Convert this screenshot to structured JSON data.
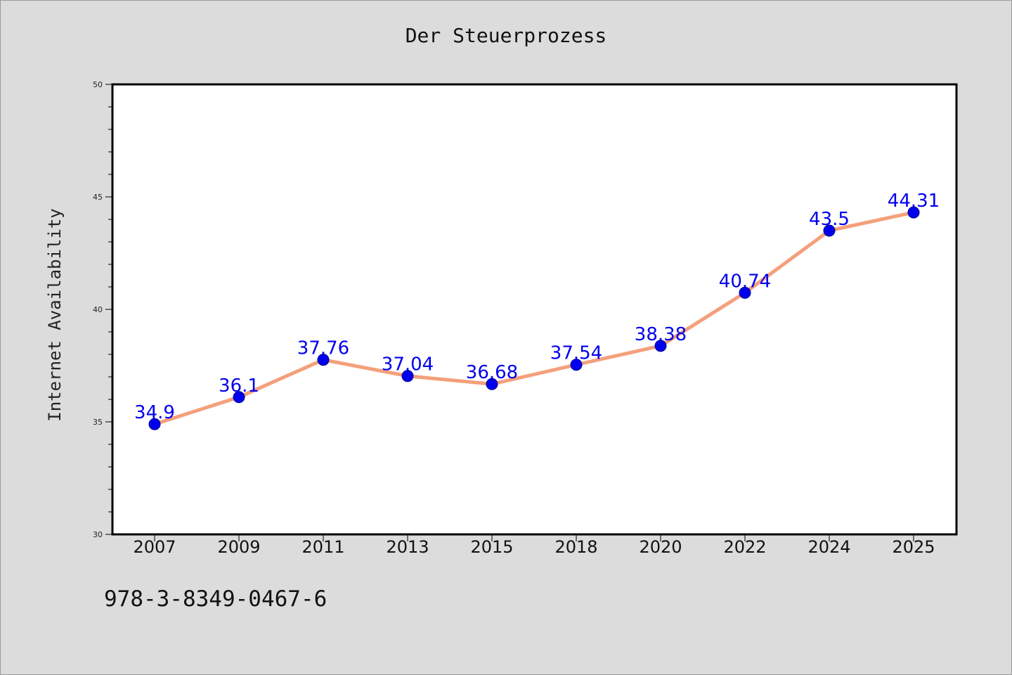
{
  "chart_data": {
    "type": "line",
    "title": "Der Steuerprozess",
    "xlabel": "",
    "ylabel": "Internet Availability",
    "categories": [
      "2007",
      "2009",
      "2011",
      "2013",
      "2015",
      "2018",
      "2020",
      "2022",
      "2024",
      "2025"
    ],
    "series": [
      {
        "values": [
          34.9,
          36.1,
          37.76,
          37.04,
          36.68,
          37.54,
          38.38,
          40.74,
          43.5,
          44.31
        ],
        "labels": [
          "34.9",
          "36.1",
          "37.76",
          "37.04",
          "36.68",
          "37.54",
          "38.38",
          "40.74",
          "43.5",
          "44.31"
        ],
        "line_color": "#f4a07c",
        "marker_color": "#0000ee",
        "label_color": "#0000ee"
      }
    ],
    "ylim": [
      30,
      50
    ],
    "yticks": [
      "30",
      "35",
      "40",
      "45",
      "50"
    ],
    "grid": false,
    "legend": "none"
  },
  "footer": {
    "note": "978-3-8349-0467-6"
  }
}
